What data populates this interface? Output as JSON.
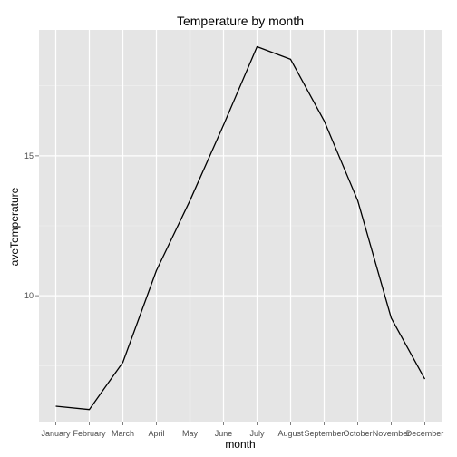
{
  "chart_data": {
    "type": "line",
    "title": "Temperature by month",
    "xlabel": "month",
    "ylabel": "aveTemperature",
    "categories": [
      "January",
      "February",
      "March",
      "April",
      "May",
      "June",
      "July",
      "August",
      "September",
      "October",
      "November",
      "December"
    ],
    "series": [
      {
        "name": "aveTemperature",
        "values": [
          6.05,
          5.93,
          7.62,
          10.9,
          13.4,
          16.1,
          18.9,
          18.45,
          16.25,
          13.4,
          9.2,
          7.02
        ]
      }
    ],
    "yticks": [
      10,
      15
    ],
    "ylim": [
      5.5,
      19.5
    ],
    "grid": true,
    "colors": {
      "panel": "#e5e5e5",
      "grid_major": "#ffffff",
      "grid_minor": "#f2f2f2",
      "line": "#000000"
    }
  }
}
